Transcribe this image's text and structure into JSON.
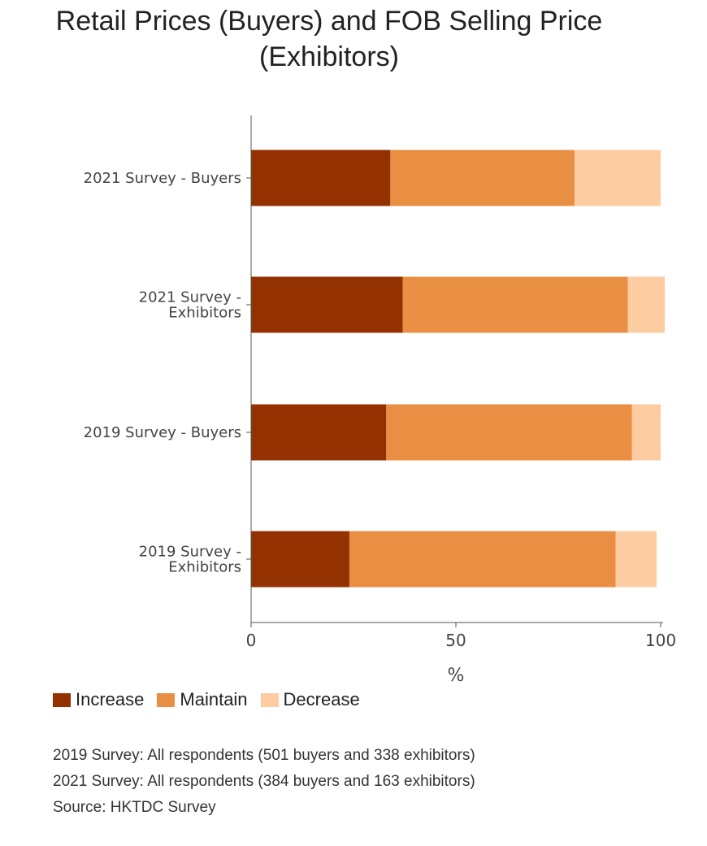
{
  "chart_data": {
    "type": "bar",
    "orientation": "horizontal",
    "stacked": true,
    "title": "Retail Prices (Buyers) and FOB Selling Price (Exhibitors)",
    "title_lines": [
      "Retail Prices (Buyers) and FOB Selling Price",
      "(Exhibitors)"
    ],
    "categories": [
      {
        "lines": [
          "2021 Survey - Buyers"
        ]
      },
      {
        "lines": [
          "2021 Survey -",
          "Exhibitors"
        ]
      },
      {
        "lines": [
          "2019 Survey - Buyers"
        ]
      },
      {
        "lines": [
          "2019 Survey -",
          "Exhibitors"
        ]
      }
    ],
    "series": [
      {
        "name": "Increase",
        "color": "#933100",
        "values": [
          34,
          37,
          33,
          24
        ]
      },
      {
        "name": "Maintain",
        "color": "#e98f43",
        "values": [
          45,
          55,
          60,
          65
        ]
      },
      {
        "name": "Decrease",
        "color": "#fecca1",
        "values": [
          21,
          9,
          7,
          10
        ]
      }
    ],
    "xlabel": "%",
    "ylabel": "",
    "xlim": [
      0,
      100
    ],
    "xticks": [
      0,
      50,
      100
    ],
    "grid": false,
    "legend_position": "bottom-left"
  },
  "notes": [
    "2019 Survey: All respondents (501 buyers and 338 exhibitors)",
    "2021 Survey: All respondents (384 buyers and 163 exhibitors)",
    "Source: HKTDC Survey"
  ]
}
